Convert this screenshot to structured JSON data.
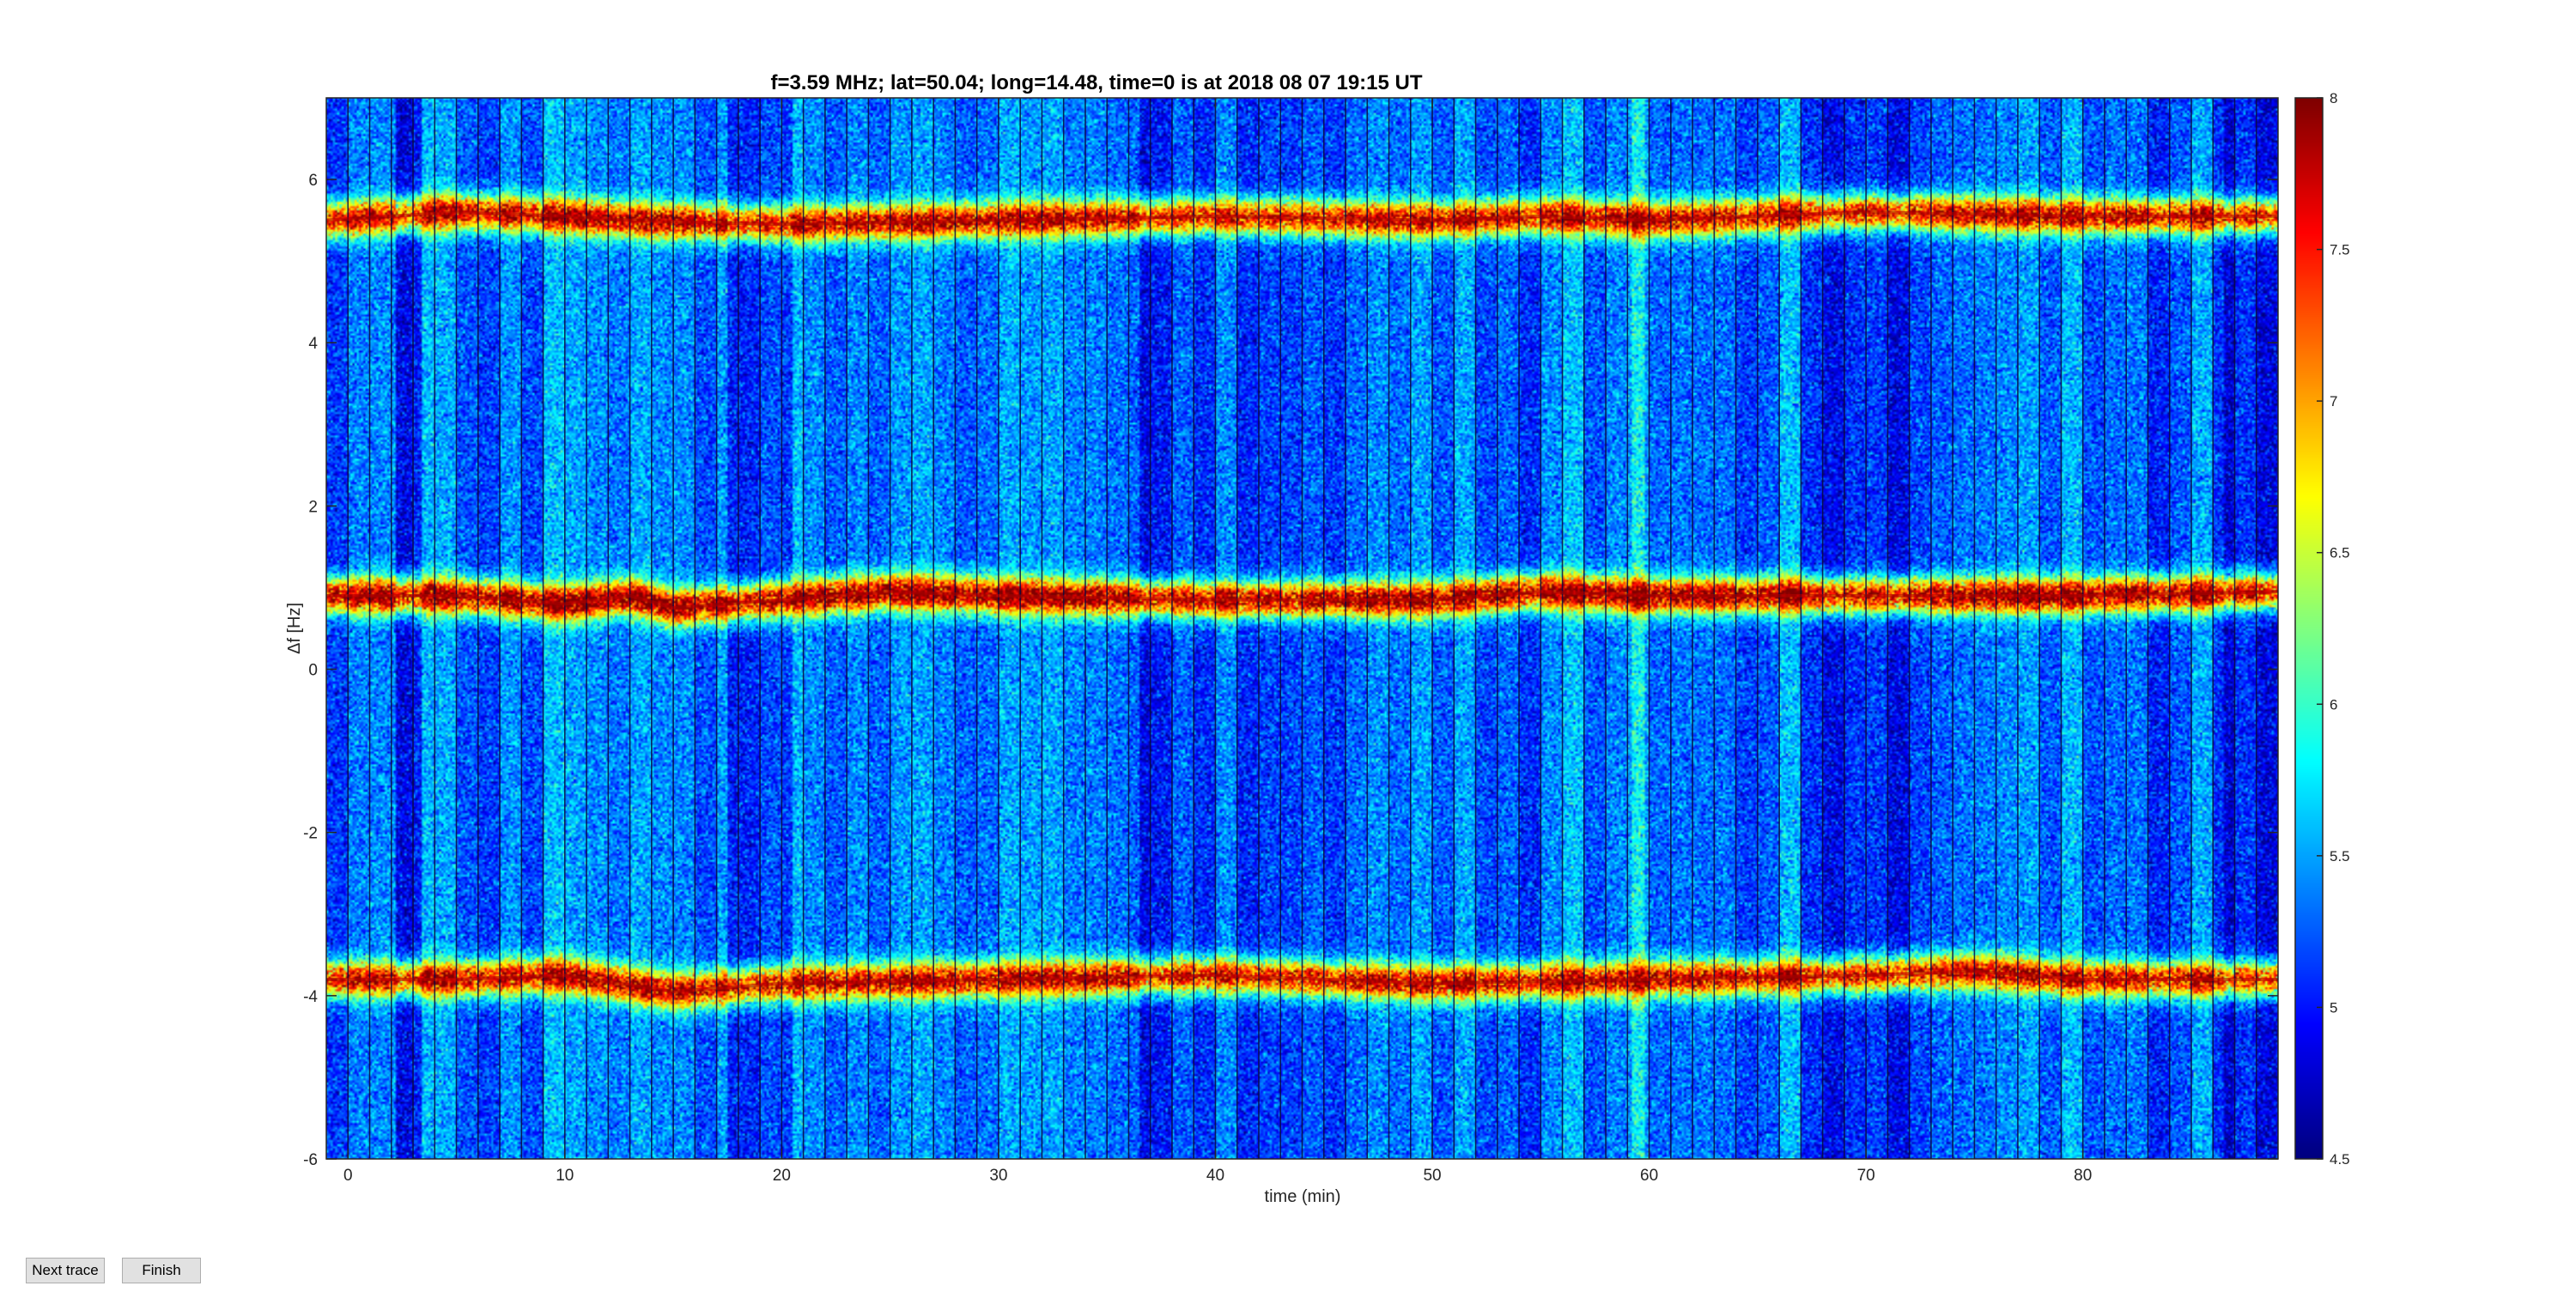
{
  "chart_data": {
    "type": "heatmap",
    "title": "f=3.59 MHz;  lat=50.04; long=14.48, time=0 is at 2018 08 07 19:15 UT",
    "xlabel": "time (min)",
    "ylabel": "Δf [Hz]",
    "xlim": [
      -1,
      89
    ],
    "ylim": [
      -6,
      7
    ],
    "x_ticks": [
      0,
      10,
      20,
      30,
      40,
      50,
      60,
      70,
      80
    ],
    "x_tick_labels": [
      "0",
      "10",
      "20",
      "30",
      "40",
      "50",
      "60",
      "70",
      "80"
    ],
    "y_ticks": [
      -6,
      -4,
      -2,
      0,
      2,
      4,
      6
    ],
    "y_tick_labels": [
      "-6",
      "-4",
      "-2",
      "0",
      "2",
      "4",
      "6"
    ],
    "colormap": "jet",
    "clim": [
      4.5,
      8
    ],
    "colorbar_ticks": [
      4.5,
      5,
      5.5,
      6,
      6.5,
      7,
      7.5,
      8
    ],
    "colorbar_tick_labels": [
      "4.5",
      "5",
      "5.5",
      "6",
      "6.5",
      "7",
      "7.5",
      "8"
    ],
    "segment_separator_interval_min": 1,
    "traces": [
      {
        "x": [
          -1,
          5,
          10,
          13,
          20,
          30,
          40,
          50,
          55,
          60,
          70,
          80,
          89
        ],
        "y": [
          5.5,
          5.6,
          5.55,
          5.5,
          5.45,
          5.5,
          5.55,
          5.5,
          5.55,
          5.5,
          5.6,
          5.55,
          5.55
        ],
        "level": 7.8
      },
      {
        "x": [
          -1,
          5,
          10,
          13,
          15,
          20,
          25,
          30,
          40,
          50,
          55,
          60,
          70,
          80,
          89
        ],
        "y": [
          0.9,
          0.9,
          0.8,
          0.9,
          0.75,
          0.85,
          0.95,
          0.9,
          0.85,
          0.85,
          0.95,
          0.9,
          0.9,
          0.9,
          0.95
        ],
        "level": 8.0
      },
      {
        "x": [
          -1,
          5,
          10,
          15,
          20,
          30,
          40,
          50,
          60,
          70,
          75,
          80,
          89
        ],
        "y": [
          -3.8,
          -3.8,
          -3.75,
          -3.95,
          -3.85,
          -3.8,
          -3.75,
          -3.85,
          -3.8,
          -3.75,
          -3.7,
          -3.8,
          -3.8
        ],
        "level": 7.8
      }
    ]
  },
  "controls": {
    "next_trace_label": "Next trace",
    "finish_label": "Finish"
  }
}
